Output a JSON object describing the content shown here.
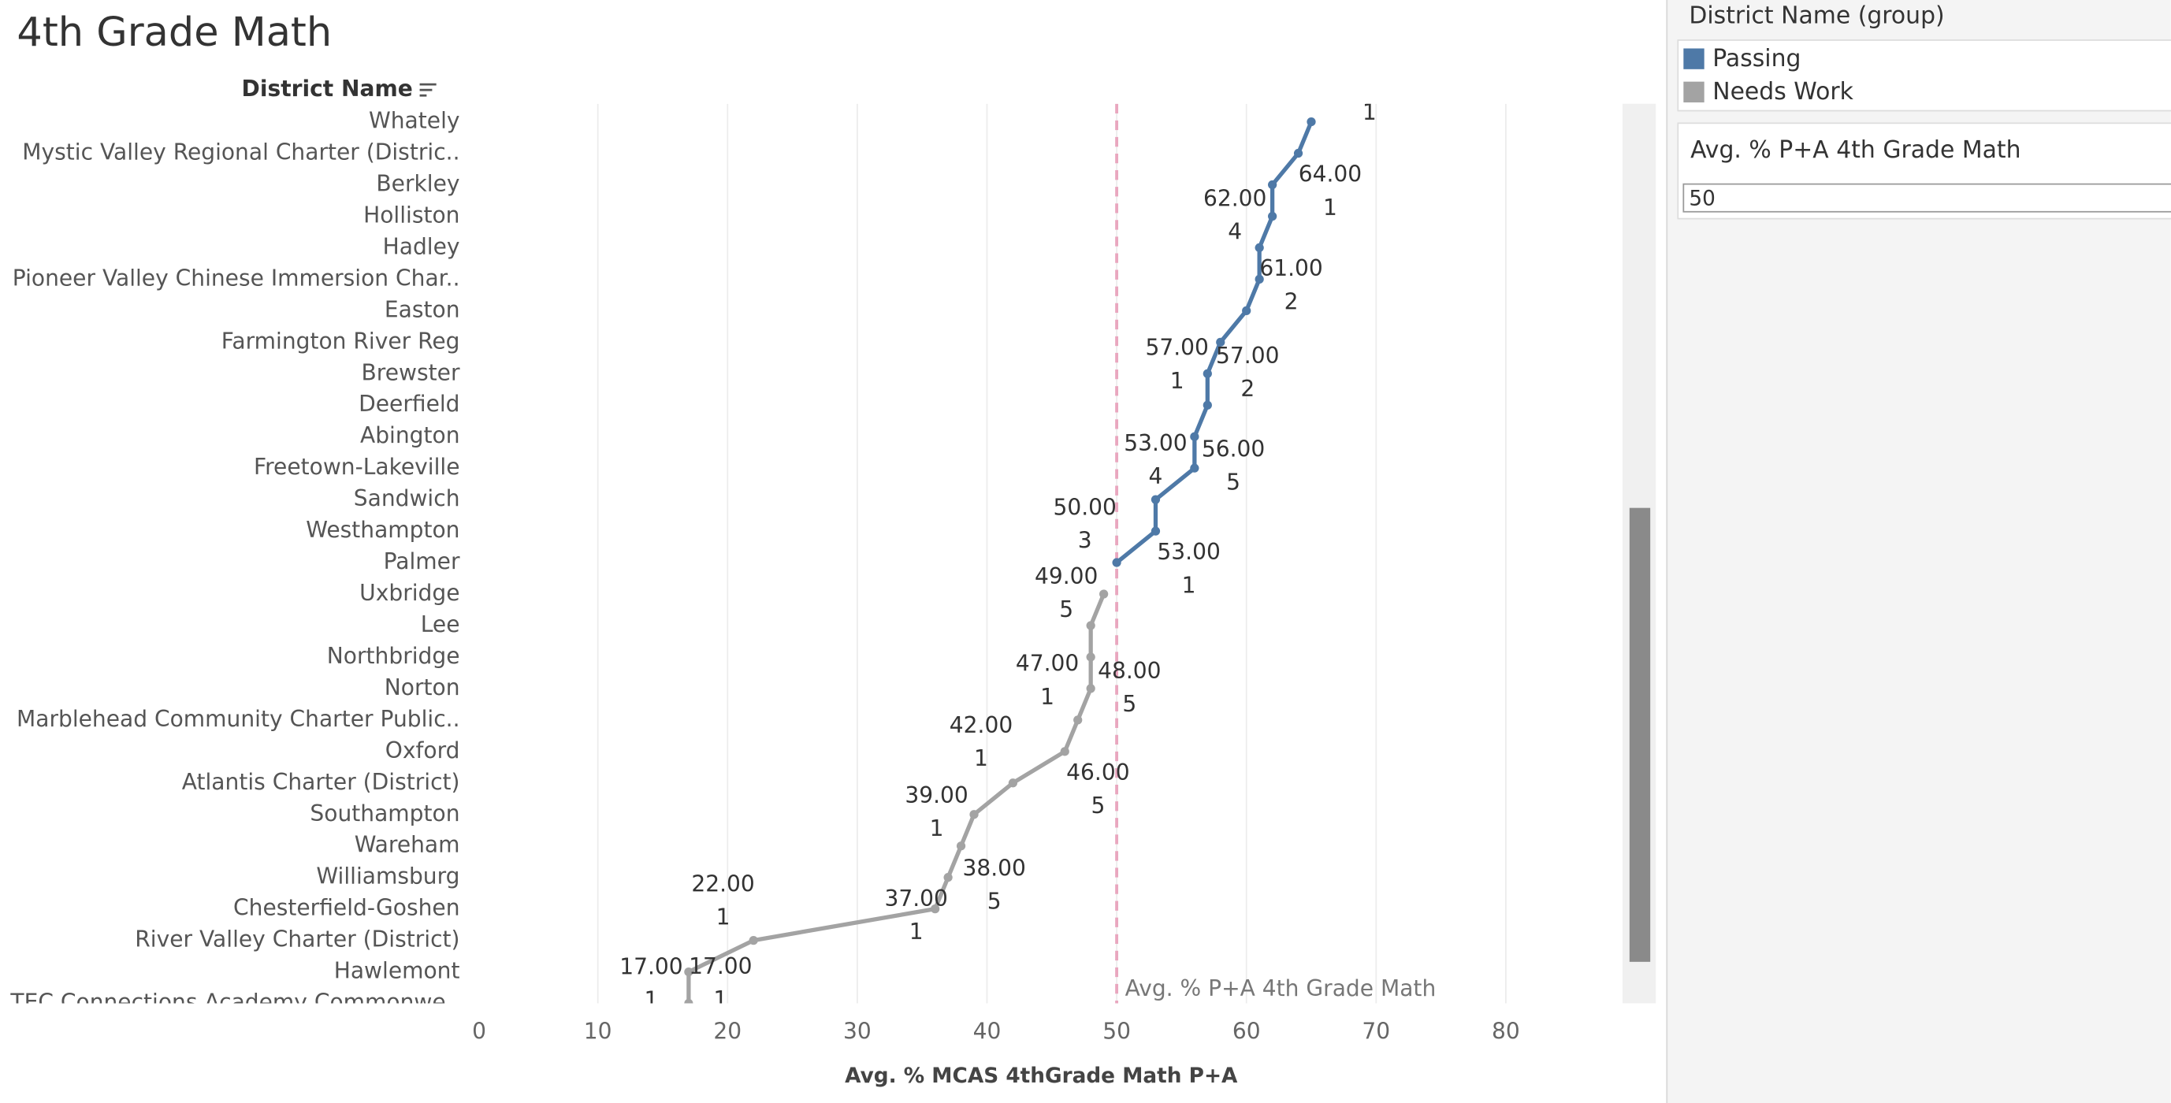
{
  "chart_data": {
    "type": "line",
    "title": "4th Grade Math",
    "y_header": "District Name",
    "x_label": "Avg. % MCAS 4thGrade Math P+A",
    "legend_title": "District Name (group)",
    "categories": [
      "Whately",
      "Mystic Valley Regional Charter (Distric..",
      "Berkley",
      "Holliston",
      "Hadley",
      "Pioneer Valley Chinese Immersion Char..",
      "Easton",
      "Farmington River Reg",
      "Brewster",
      "Deerfield",
      "Abington",
      "Freetown-Lakeville",
      "Sandwich",
      "Westhampton",
      "Palmer",
      "Uxbridge",
      "Lee",
      "Northbridge",
      "Norton",
      "Marblehead Community Charter Public..",
      "Oxford",
      "Atlantis Charter (District)",
      "Southampton",
      "Wareham",
      "Williamsburg",
      "Chesterfield-Goshen",
      "River Valley Charter (District)",
      "Hawlemont",
      "TEC Connections Academy Commonwe.."
    ],
    "series": [
      {
        "name": "Passing",
        "color": "#4e79a7",
        "values": [
          65,
          64,
          62,
          62,
          61,
          61,
          60,
          58,
          57,
          57,
          56,
          56,
          53,
          53,
          50,
          null,
          null,
          null,
          null,
          null,
          null,
          null,
          null,
          null,
          null,
          null,
          null,
          null,
          null
        ],
        "value_labels": [
          null,
          "64.00",
          null,
          "62.00",
          null,
          "61.00",
          null,
          null,
          "57.00",
          "57.00",
          null,
          "56.00",
          "53.00",
          "53.00",
          "50.00",
          null,
          null,
          null,
          null,
          null,
          null,
          null,
          null,
          null,
          null,
          null,
          null,
          null,
          null
        ],
        "counts": [
          1,
          1,
          null,
          4,
          null,
          2,
          null,
          null,
          1,
          2,
          null,
          5,
          4,
          1,
          3,
          null,
          null,
          null,
          null,
          null,
          null,
          null,
          null,
          null,
          null,
          null,
          null,
          null,
          null
        ]
      },
      {
        "name": "Needs Work",
        "color": "#a3a3a3",
        "values": [
          null,
          null,
          null,
          null,
          null,
          null,
          null,
          null,
          null,
          null,
          null,
          null,
          null,
          null,
          null,
          49,
          48,
          48,
          48,
          47,
          46,
          42,
          39,
          38,
          37,
          36,
          22,
          17,
          17
        ],
        "value_labels": [
          null,
          null,
          null,
          null,
          null,
          null,
          null,
          null,
          null,
          null,
          null,
          null,
          null,
          null,
          null,
          "49.00",
          null,
          null,
          "48.00",
          "47.00",
          "46.00",
          "42.00",
          "39.00",
          "38.00",
          "37.00",
          null,
          "22.00",
          "17.00",
          "17.00"
        ],
        "counts": [
          null,
          null,
          null,
          null,
          null,
          null,
          null,
          null,
          null,
          null,
          null,
          null,
          null,
          null,
          null,
          5,
          null,
          null,
          5,
          1,
          5,
          1,
          1,
          5,
          1,
          null,
          1,
          1,
          1
        ]
      }
    ],
    "xlim": [
      0,
      89
    ],
    "xticks": [
      0,
      10,
      20,
      30,
      40,
      50,
      60,
      70,
      80
    ],
    "grid": true,
    "reference_line": {
      "value": 50,
      "label": "Avg. % P+A 4th Grade Math",
      "color": "#e9a7bf"
    }
  },
  "parameter": {
    "label": "Avg. % P+A 4th Grade Math",
    "value": 50
  }
}
